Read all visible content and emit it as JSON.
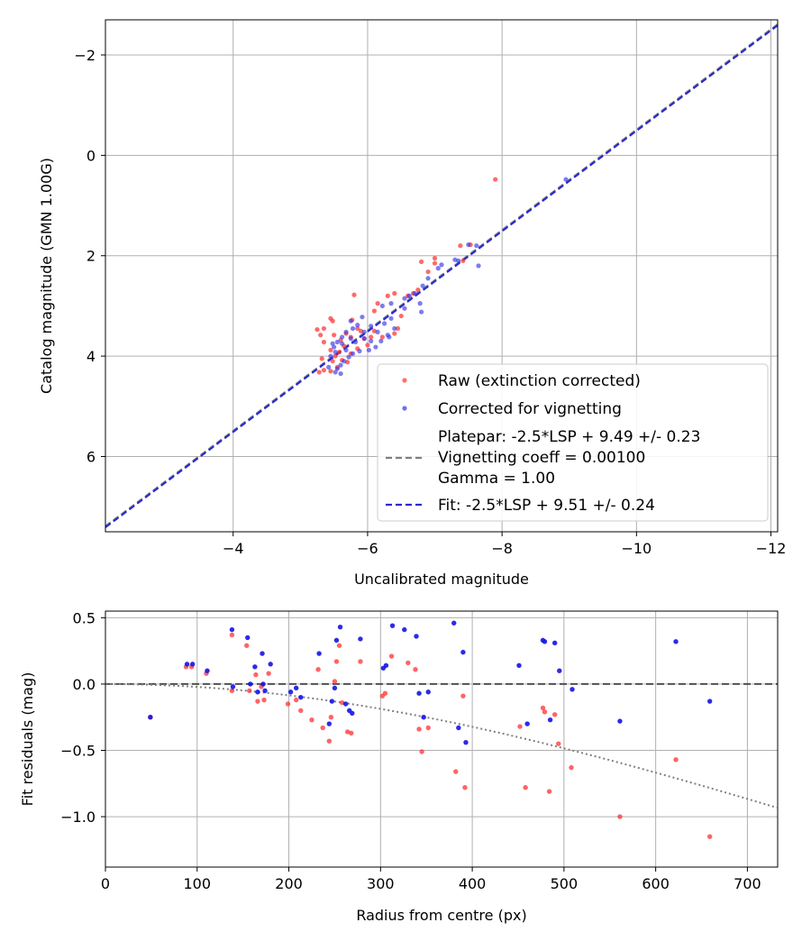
{
  "chart_data": [
    {
      "type": "scatter",
      "xlabel": "Uncalibrated magnitude",
      "ylabel": "Catalog magnitude (GMN 1.00G)",
      "xlim": [
        -2.1,
        -12.1
      ],
      "ylim": [
        7.5,
        -2.7
      ],
      "xticks": [
        -4,
        -6,
        -8,
        -10,
        -12
      ],
      "xtick_labels": [
        "−4",
        "−6",
        "−8",
        "−10",
        "−12"
      ],
      "yticks": [
        -2,
        0,
        2,
        4,
        6
      ],
      "ytick_labels": [
        "−2",
        "0",
        "2",
        "4",
        "6"
      ],
      "grid": true,
      "legend_position": "lower-right",
      "legend": {
        "raw": "Raw (extinction corrected)",
        "corrected": "Corrected for vignetting",
        "platepar": [
          "Platepar: -2.5*LSP + 9.49 +/- 0.23",
          "Vignetting coeff = 0.00100",
          "Gamma = 1.00"
        ],
        "fit": "Fit: -2.5*LSP + 9.51 +/- 0.24"
      },
      "colors": {
        "raw": "#ff3030",
        "corrected": "#3535e8",
        "platepar_line": "#7f7f7f",
        "fit_line": "#2a2ad0"
      },
      "fit_line": {
        "slope": 1.0,
        "intercept": 9.51
      },
      "platepar_line": {
        "slope": 1.0,
        "intercept": 9.49
      },
      "series": [
        {
          "name": "Raw (extinction corrected)",
          "points": [
            [
              -7.9,
              0.48
            ],
            [
              -7.53,
              1.78
            ],
            [
              -7.38,
              1.8
            ],
            [
              -7.42,
              2.1
            ],
            [
              -7.0,
              2.05
            ],
            [
              -7.0,
              2.15
            ],
            [
              -6.8,
              2.12
            ],
            [
              -6.9,
              2.32
            ],
            [
              -6.75,
              2.68
            ],
            [
              -6.68,
              2.75
            ],
            [
              -6.6,
              2.8
            ],
            [
              -6.4,
              2.75
            ],
            [
              -6.3,
              2.8
            ],
            [
              -6.15,
              2.95
            ],
            [
              -6.1,
              3.1
            ],
            [
              -6.5,
              3.2
            ],
            [
              -6.45,
              3.45
            ],
            [
              -6.4,
              3.55
            ],
            [
              -6.22,
              3.62
            ],
            [
              -6.1,
              3.5
            ],
            [
              -5.9,
              3.5
            ],
            [
              -5.8,
              2.78
            ],
            [
              -5.77,
              3.28
            ],
            [
              -5.85,
              3.45
            ],
            [
              -5.75,
              3.62
            ],
            [
              -5.68,
              3.55
            ],
            [
              -5.6,
              3.68
            ],
            [
              -5.5,
              3.58
            ],
            [
              -5.45,
              3.25
            ],
            [
              -5.48,
              3.3
            ],
            [
              -5.35,
              3.45
            ],
            [
              -5.3,
              3.58
            ],
            [
              -5.25,
              3.47
            ],
            [
              -5.35,
              3.72
            ],
            [
              -5.45,
              3.88
            ],
            [
              -5.52,
              4.0
            ],
            [
              -5.62,
              4.08
            ],
            [
              -5.7,
              4.12
            ],
            [
              -5.55,
              4.22
            ],
            [
              -5.45,
              4.3
            ],
            [
              -5.35,
              4.28
            ],
            [
              -5.28,
              4.32
            ],
            [
              -5.32,
              4.05
            ],
            [
              -5.48,
              4.1
            ],
            [
              -5.58,
              3.92
            ],
            [
              -5.65,
              3.8
            ],
            [
              -5.75,
              3.95
            ],
            [
              -5.85,
              3.85
            ],
            [
              -6.0,
              3.78
            ],
            [
              -6.05,
              3.62
            ],
            [
              -5.95,
              3.65
            ]
          ]
        },
        {
          "name": "Corrected for vignetting",
          "points": [
            [
              -8.95,
              0.48
            ],
            [
              -7.65,
              2.2
            ],
            [
              -7.62,
              1.8
            ],
            [
              -7.5,
              1.78
            ],
            [
              -7.35,
              2.1
            ],
            [
              -7.3,
              2.08
            ],
            [
              -7.1,
              2.18
            ],
            [
              -7.05,
              2.25
            ],
            [
              -6.9,
              2.45
            ],
            [
              -6.82,
              2.6
            ],
            [
              -6.7,
              2.75
            ],
            [
              -6.62,
              2.8
            ],
            [
              -6.55,
              2.85
            ],
            [
              -6.78,
              2.95
            ],
            [
              -6.8,
              3.12
            ],
            [
              -6.55,
              3.05
            ],
            [
              -6.35,
              2.95
            ],
            [
              -6.22,
              3.0
            ],
            [
              -6.35,
              3.25
            ],
            [
              -6.25,
              3.35
            ],
            [
              -6.4,
              3.45
            ],
            [
              -6.3,
              3.58
            ],
            [
              -6.15,
              3.52
            ],
            [
              -6.05,
              3.4
            ],
            [
              -5.95,
              3.52
            ],
            [
              -5.85,
              3.38
            ],
            [
              -5.92,
              3.22
            ],
            [
              -5.75,
              3.3
            ],
            [
              -5.78,
              3.45
            ],
            [
              -5.68,
              3.52
            ],
            [
              -5.75,
              3.65
            ],
            [
              -5.82,
              3.72
            ],
            [
              -5.95,
              3.65
            ],
            [
              -6.05,
              3.7
            ],
            [
              -6.12,
              3.82
            ],
            [
              -6.02,
              3.88
            ],
            [
              -5.88,
              3.9
            ],
            [
              -5.78,
              3.95
            ],
            [
              -5.72,
              4.02
            ],
            [
              -5.65,
              4.1
            ],
            [
              -5.6,
              4.18
            ],
            [
              -5.55,
              4.25
            ],
            [
              -5.52,
              4.32
            ],
            [
              -5.42,
              4.22
            ],
            [
              -5.45,
              4.0
            ],
            [
              -5.5,
              3.82
            ],
            [
              -5.55,
              3.72
            ],
            [
              -5.62,
              3.75
            ],
            [
              -5.68,
              3.88
            ],
            [
              -5.48,
              3.75
            ],
            [
              -5.52,
              3.92
            ],
            [
              -5.6,
              4.35
            ],
            [
              -5.62,
              3.62
            ],
            [
              -6.2,
              3.7
            ],
            [
              -6.32,
              3.62
            ]
          ]
        }
      ]
    },
    {
      "type": "scatter",
      "xlabel": "Radius from centre (px)",
      "ylabel": "Fit residuals (mag)",
      "xlim": [
        0,
        733
      ],
      "ylim": [
        -1.38,
        0.55
      ],
      "xticks": [
        0,
        100,
        200,
        300,
        400,
        500,
        600,
        700
      ],
      "xtick_labels": [
        "0",
        "100",
        "200",
        "300",
        "400",
        "500",
        "600",
        "700"
      ],
      "yticks": [
        0.5,
        0.0,
        -0.5,
        -1.0
      ],
      "ytick_labels": [
        "0.5",
        "0.0",
        "−0.5",
        "−1.0"
      ],
      "grid": true,
      "zero_line": 0.0,
      "vignetting_curve": {
        "coeff": 0.001,
        "x_max": 733
      },
      "colors": {
        "raw": "#ff3030",
        "corrected": "#1414e6",
        "zero_line": "#505050",
        "curve": "#808080"
      },
      "series": [
        {
          "name": "Raw",
          "points": [
            [
              49,
              -0.25
            ],
            [
              88,
              0.13
            ],
            [
              94,
              0.13
            ],
            [
              110,
              0.08
            ],
            [
              138,
              0.37
            ],
            [
              138,
              -0.05
            ],
            [
              154,
              0.29
            ],
            [
              157,
              -0.05
            ],
            [
              164,
              0.07
            ],
            [
              166,
              -0.13
            ],
            [
              170,
              -0.02
            ],
            [
              173,
              -0.12
            ],
            [
              178,
              0.08
            ],
            [
              199,
              -0.15
            ],
            [
              208,
              -0.12
            ],
            [
              213,
              -0.2
            ],
            [
              225,
              -0.27
            ],
            [
              232,
              0.11
            ],
            [
              237,
              -0.33
            ],
            [
              244,
              -0.43
            ],
            [
              246,
              -0.25
            ],
            [
              250,
              0.02
            ],
            [
              252,
              0.17
            ],
            [
              255,
              0.29
            ],
            [
              258,
              -0.14
            ],
            [
              264,
              -0.36
            ],
            [
              268,
              -0.37
            ],
            [
              278,
              0.17
            ],
            [
              302,
              -0.09
            ],
            [
              305,
              -0.07
            ],
            [
              312,
              0.21
            ],
            [
              330,
              0.16
            ],
            [
              338,
              0.11
            ],
            [
              342,
              -0.34
            ],
            [
              345,
              -0.51
            ],
            [
              352,
              -0.33
            ],
            [
              382,
              -0.66
            ],
            [
              390,
              -0.09
            ],
            [
              392,
              -0.78
            ],
            [
              452,
              -0.32
            ],
            [
              458,
              -0.78
            ],
            [
              477,
              -0.18
            ],
            [
              479,
              -0.21
            ],
            [
              484,
              -0.81
            ],
            [
              490,
              -0.23
            ],
            [
              494,
              -0.45
            ],
            [
              508,
              -0.63
            ],
            [
              561,
              -1.0
            ],
            [
              622,
              -0.57
            ],
            [
              659,
              -1.15
            ]
          ]
        },
        {
          "name": "Corrected",
          "points": [
            [
              49,
              -0.25
            ],
            [
              89,
              0.15
            ],
            [
              95,
              0.15
            ],
            [
              111,
              0.1
            ],
            [
              138,
              0.41
            ],
            [
              139,
              -0.02
            ],
            [
              155,
              0.35
            ],
            [
              158,
              0.0
            ],
            [
              163,
              0.13
            ],
            [
              166,
              -0.06
            ],
            [
              171,
              0.23
            ],
            [
              172,
              0.0
            ],
            [
              174,
              -0.05
            ],
            [
              180,
              0.15
            ],
            [
              202,
              -0.06
            ],
            [
              208,
              -0.03
            ],
            [
              213,
              -0.1
            ],
            [
              233,
              0.23
            ],
            [
              244,
              -0.3
            ],
            [
              247,
              -0.13
            ],
            [
              250,
              -0.03
            ],
            [
              252,
              0.33
            ],
            [
              256,
              0.43
            ],
            [
              262,
              -0.15
            ],
            [
              266,
              -0.2
            ],
            [
              269,
              -0.22
            ],
            [
              278,
              0.34
            ],
            [
              303,
              0.12
            ],
            [
              306,
              0.14
            ],
            [
              313,
              0.44
            ],
            [
              326,
              0.41
            ],
            [
              339,
              0.36
            ],
            [
              342,
              -0.07
            ],
            [
              347,
              -0.25
            ],
            [
              352,
              -0.06
            ],
            [
              380,
              0.46
            ],
            [
              385,
              -0.33
            ],
            [
              390,
              0.24
            ],
            [
              393,
              -0.44
            ],
            [
              451,
              0.14
            ],
            [
              460,
              -0.3
            ],
            [
              477,
              0.33
            ],
            [
              479,
              0.32
            ],
            [
              485,
              -0.27
            ],
            [
              490,
              0.31
            ],
            [
              495,
              0.1
            ],
            [
              509,
              -0.04
            ],
            [
              561,
              -0.28
            ],
            [
              622,
              0.32
            ],
            [
              659,
              -0.13
            ]
          ]
        }
      ]
    }
  ]
}
